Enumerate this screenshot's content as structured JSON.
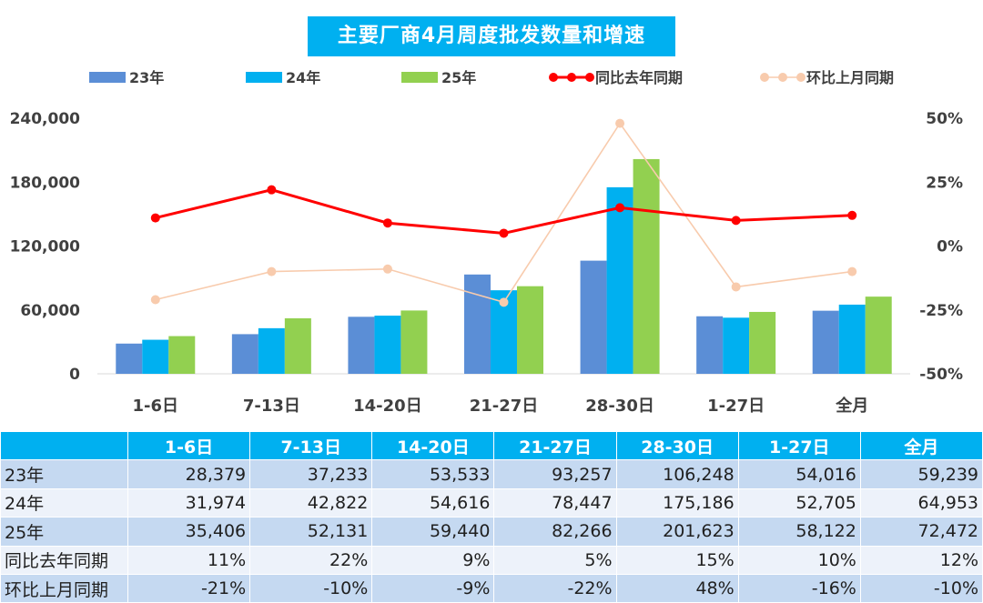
{
  "chart_data": {
    "type": "bar",
    "title": "主要厂商4月周度批发数量和增速",
    "categories": [
      "1-6日",
      "7-13日",
      "14-20日",
      "21-27日",
      "28-30日",
      "1-27日",
      "全月"
    ],
    "series": [
      {
        "name": "23年",
        "kind": "bar",
        "axis": "left",
        "color": "#5B8ED6",
        "values": [
          28379,
          37233,
          53533,
          93257,
          106248,
          54016,
          59239
        ]
      },
      {
        "name": "24年",
        "kind": "bar",
        "axis": "left",
        "color": "#00B0F0",
        "values": [
          31974,
          42822,
          54616,
          78447,
          175186,
          52705,
          64953
        ]
      },
      {
        "name": "25年",
        "kind": "bar",
        "axis": "left",
        "color": "#92D050",
        "values": [
          35406,
          52131,
          59440,
          82266,
          201623,
          58122,
          72472
        ]
      },
      {
        "name": "同比去年同期",
        "kind": "line",
        "axis": "right",
        "color": "#FF0000",
        "values": [
          11,
          22,
          9,
          5,
          15,
          10,
          12
        ]
      },
      {
        "name": "环比上月同期",
        "kind": "line",
        "axis": "right",
        "color": "#F8CBAD",
        "values": [
          -21,
          -10,
          -9,
          -22,
          48,
          -16,
          -10
        ]
      }
    ],
    "ylim": [
      0,
      240000
    ],
    "yticks": [
      "0",
      "60,000",
      "120,000",
      "180,000",
      "240,000"
    ],
    "ylim_right": [
      -50,
      50
    ],
    "yticks_right": [
      "-50%",
      "-25%",
      "0%",
      "25%",
      "50%"
    ],
    "legend_position": "top",
    "grid": false
  },
  "table": {
    "corner": "",
    "headers": [
      "1-6日",
      "7-13日",
      "14-20日",
      "21-27日",
      "28-30日",
      "1-27日",
      "全月"
    ],
    "rows": [
      {
        "label": "23年",
        "cells": [
          "28,379",
          "37,233",
          "53,533",
          "93,257",
          "106,248",
          "54,016",
          "59,239"
        ]
      },
      {
        "label": "24年",
        "cells": [
          "31,974",
          "42,822",
          "54,616",
          "78,447",
          "175,186",
          "52,705",
          "64,953"
        ]
      },
      {
        "label": "25年",
        "cells": [
          "35,406",
          "52,131",
          "59,440",
          "82,266",
          "201,623",
          "58,122",
          "72,472"
        ]
      },
      {
        "label": "同比去年同期",
        "cells": [
          "11%",
          "22%",
          "9%",
          "5%",
          "15%",
          "10%",
          "12%"
        ]
      },
      {
        "label": "环比上月同期",
        "cells": [
          "-21%",
          "-10%",
          "-9%",
          "-22%",
          "48%",
          "-16%",
          "-10%"
        ]
      }
    ]
  }
}
